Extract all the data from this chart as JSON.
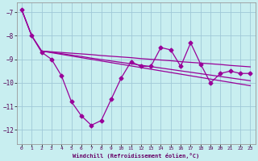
{
  "xlabel": "Windchill (Refroidissement éolien,°C)",
  "background_color": "#c8eef0",
  "grid_color": "#a0c8d8",
  "line_color": "#990099",
  "xlim": [
    -0.5,
    23.5
  ],
  "ylim": [
    -12.6,
    -6.6
  ],
  "yticks": [
    -7,
    -8,
    -9,
    -10,
    -11,
    -12
  ],
  "xticks": [
    0,
    1,
    2,
    3,
    4,
    5,
    6,
    7,
    8,
    9,
    10,
    11,
    12,
    13,
    14,
    15,
    16,
    17,
    18,
    19,
    20,
    21,
    22,
    23
  ],
  "series1_x": [
    0,
    1,
    2,
    3,
    4,
    5,
    6,
    7,
    8,
    9,
    10,
    11,
    12,
    13,
    14,
    15,
    16,
    17,
    18,
    19,
    20,
    21,
    22,
    23
  ],
  "series1_y": [
    -6.9,
    -8.0,
    -8.7,
    -9.0,
    -9.7,
    -10.8,
    -11.4,
    -11.8,
    -11.6,
    -10.7,
    -9.8,
    -9.1,
    -9.3,
    -9.3,
    -8.5,
    -8.6,
    -9.3,
    -8.3,
    -9.2,
    -10.0,
    -9.6,
    -9.5,
    -9.6,
    -9.6
  ],
  "series2_x": [
    0,
    1,
    2,
    3,
    4,
    5,
    6,
    7,
    8,
    9,
    10,
    11,
    12,
    13,
    14,
    15,
    16,
    17,
    18,
    19,
    20,
    21,
    22,
    23
  ],
  "series2_y": [
    -6.9,
    -8.0,
    -8.65,
    -8.68,
    -8.71,
    -8.74,
    -8.77,
    -8.8,
    -8.84,
    -8.87,
    -8.9,
    -8.93,
    -8.97,
    -9.0,
    -9.03,
    -9.06,
    -9.1,
    -9.13,
    -9.16,
    -9.19,
    -9.22,
    -9.26,
    -9.29,
    -9.32
  ],
  "series3_x": [
    0,
    1,
    2,
    3,
    4,
    5,
    6,
    7,
    8,
    9,
    10,
    11,
    12,
    13,
    14,
    15,
    16,
    17,
    18,
    19,
    20,
    21,
    22,
    23
  ],
  "series3_y": [
    -6.9,
    -8.0,
    -8.65,
    -8.7,
    -8.76,
    -8.82,
    -8.88,
    -8.95,
    -9.01,
    -9.07,
    -9.13,
    -9.19,
    -9.25,
    -9.31,
    -9.37,
    -9.43,
    -9.49,
    -9.55,
    -9.61,
    -9.67,
    -9.73,
    -9.79,
    -9.85,
    -9.91
  ],
  "series4_x": [
    2,
    3,
    4,
    5,
    6,
    7,
    8,
    9,
    10,
    11,
    12,
    13,
    14,
    15,
    16,
    17,
    18,
    19,
    20,
    21,
    22,
    23
  ],
  "series4_y": [
    -8.65,
    -8.72,
    -8.79,
    -8.86,
    -8.93,
    -9.0,
    -9.07,
    -9.14,
    -9.21,
    -9.28,
    -9.35,
    -9.42,
    -9.49,
    -9.56,
    -9.63,
    -9.7,
    -9.77,
    -9.84,
    -9.91,
    -9.98,
    -10.05,
    -10.12
  ]
}
